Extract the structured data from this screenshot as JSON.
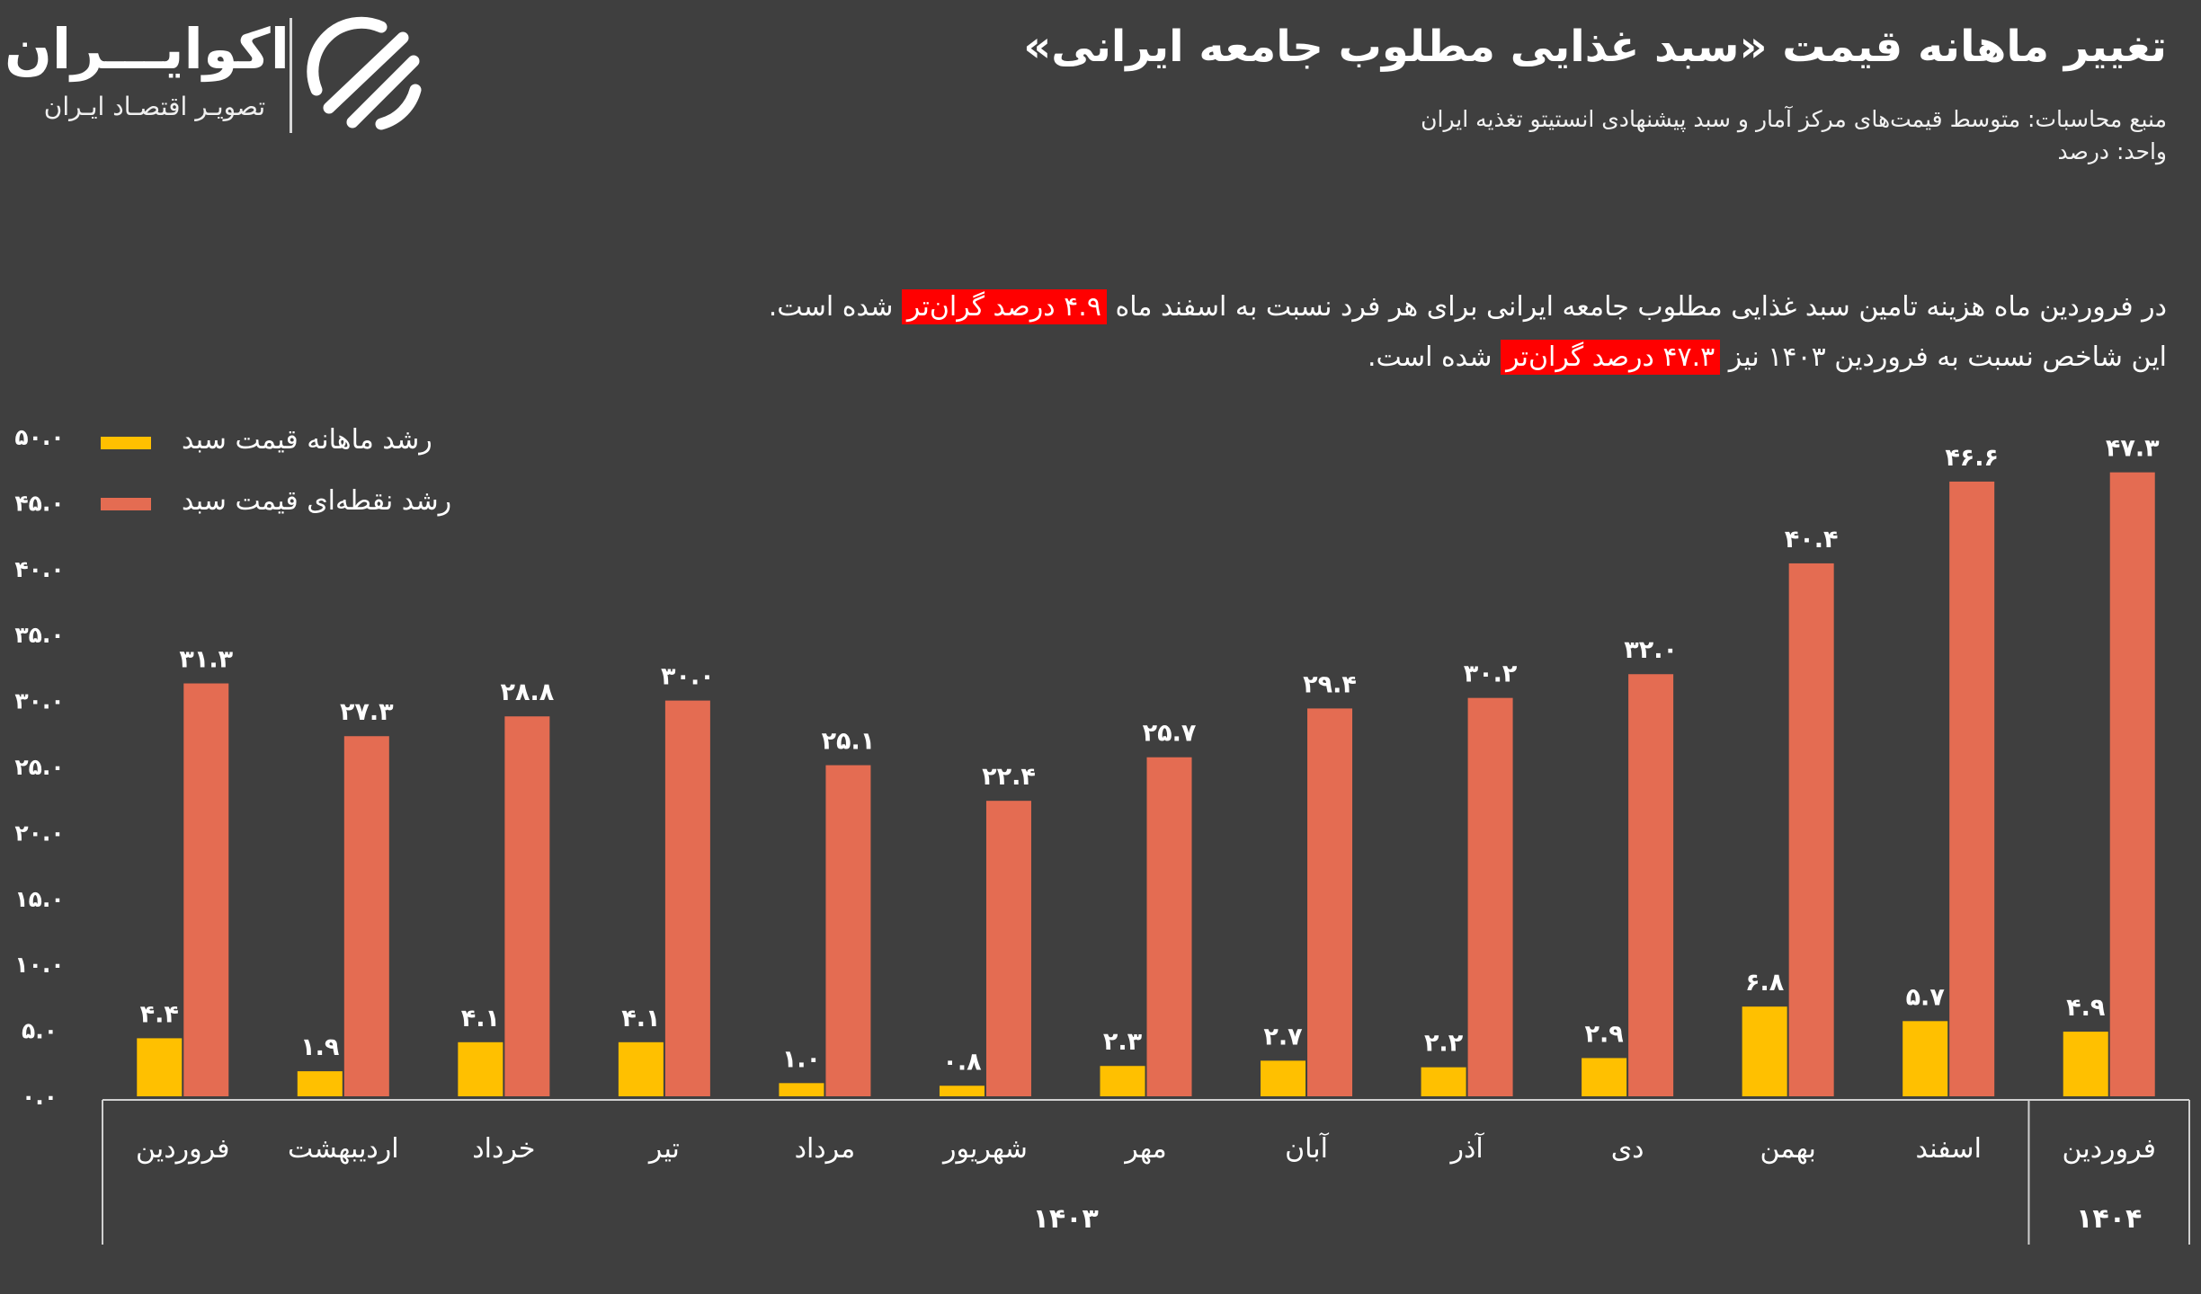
{
  "header": {
    "title": "تغییر ماهانه قیمت «سبد غذایی مطلوب جامعه ایرانی»",
    "source": "منبع محاسبات: متوسط قیمت‌های مرکز آمار و سبد پیشنهادی انستیتو تغذیه ایران",
    "unit": "واحد: درصد"
  },
  "logo": {
    "name": "اکوایـــران",
    "tagline": "تصویـر اقتصـاد ایـران"
  },
  "note": {
    "line1_a": "در فروردین ماه هزینه تامین سبد غذایی مطلوب جامعه ایرانی برای هر فرد نسبت به اسفند ماه",
    "line1_hl": "۴.۹ درصد گران‌تر",
    "line1_b": "شده است.",
    "line2_a": "این شاخص نسبت به فروردین ۱۴۰۳ نیز",
    "line2_hl": "۴۷.۳ درصد گران‌تر",
    "line2_b": "شده است."
  },
  "colors": {
    "background": "#3f3f3f",
    "monthly": "#ffc000",
    "pointwise": "#e46c52",
    "highlight": "#ff0000"
  },
  "chart_data": {
    "type": "bar",
    "categories": [
      "فروردین",
      "اردیبهشت",
      "خرداد",
      "تیر",
      "مرداد",
      "شهریور",
      "مهر",
      "آبان",
      "آذر",
      "دی",
      "بهمن",
      "اسفند",
      "فروردین"
    ],
    "groups": [
      {
        "label": "۱۴۰۳",
        "from": 0,
        "to": 11
      },
      {
        "label": "۱۴۰۴",
        "from": 12,
        "to": 12
      }
    ],
    "series": [
      {
        "name": "رشد ماهانه قیمت سبد",
        "color": "#ffc000",
        "values": [
          4.4,
          1.9,
          4.1,
          4.1,
          1.0,
          0.8,
          2.3,
          2.7,
          2.2,
          2.9,
          6.8,
          5.7,
          4.9
        ],
        "labels": [
          "۴.۴",
          "۱.۹",
          "۴.۱",
          "۴.۱",
          "۱.۰",
          "۰.۸",
          "۲.۳",
          "۲.۷",
          "۲.۲",
          "۲.۹",
          "۶.۸",
          "۵.۷",
          "۴.۹"
        ]
      },
      {
        "name": "رشد نقطه‌ای قیمت سبد",
        "color": "#e46c52",
        "values": [
          31.3,
          27.3,
          28.8,
          30.0,
          25.1,
          22.4,
          25.7,
          29.4,
          30.2,
          32.0,
          40.4,
          46.6,
          47.3
        ],
        "labels": [
          "۳۱.۳",
          "۲۷.۳",
          "۲۸.۸",
          "۳۰.۰",
          "۲۵.۱",
          "۲۲.۴",
          "۲۵.۷",
          "۲۹.۴",
          "۳۰.۲",
          "۳۲.۰",
          "۴۰.۴",
          "۴۶.۶",
          "۴۷.۳"
        ]
      }
    ],
    "yticks": [
      0,
      5,
      10,
      15,
      20,
      25,
      30,
      35,
      40,
      45,
      50
    ],
    "ytick_labels": [
      "۰.۰",
      "۵.۰",
      "۱۰.۰",
      "۱۵.۰",
      "۲۰.۰",
      "۲۵.۰",
      "۳۰.۰",
      "۳۵.۰",
      "۴۰.۰",
      "۴۵.۰",
      "۵۰.۰"
    ],
    "ylim": [
      0,
      50
    ],
    "grid": false,
    "legend": "top-left"
  }
}
